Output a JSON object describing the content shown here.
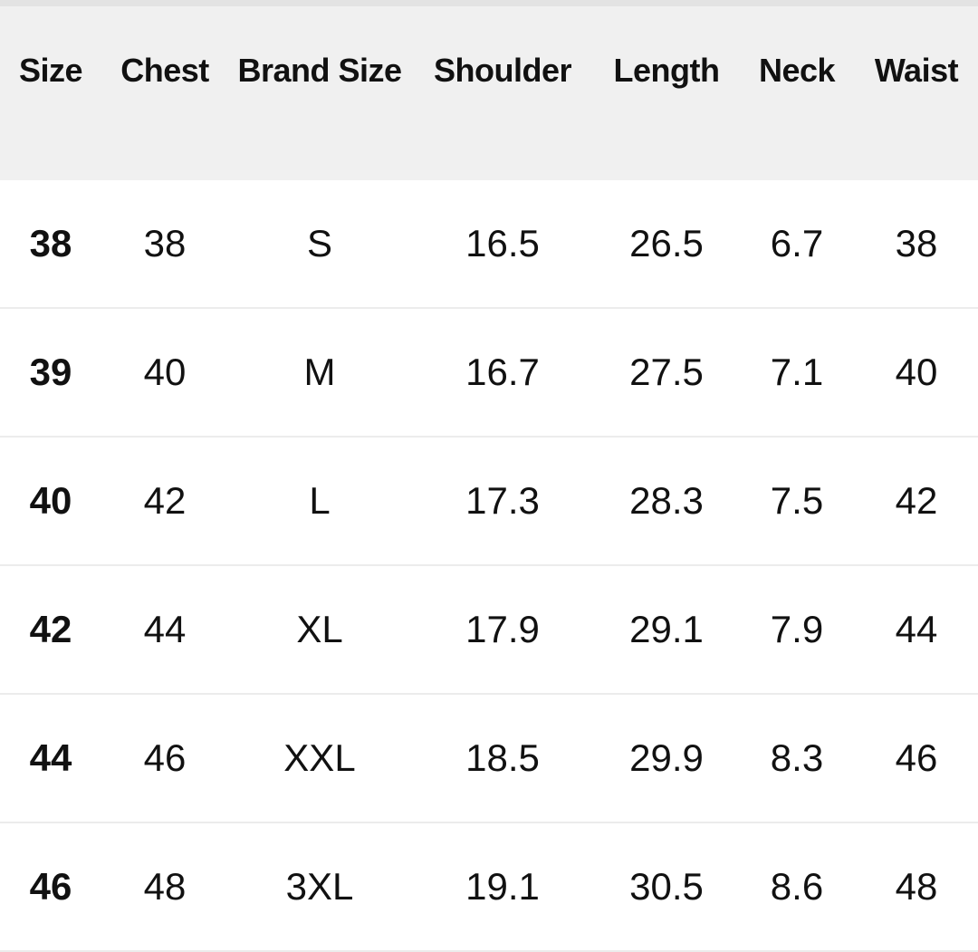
{
  "table": {
    "headers": [
      "Size",
      "Chest",
      "Brand Size",
      "Shoulder",
      "Length",
      "Neck",
      "Waist"
    ],
    "rows": [
      [
        "38",
        "38",
        "S",
        "16.5",
        "26.5",
        "6.7",
        "38"
      ],
      [
        "39",
        "40",
        "M",
        "16.7",
        "27.5",
        "7.1",
        "40"
      ],
      [
        "40",
        "42",
        "L",
        "17.3",
        "28.3",
        "7.5",
        "42"
      ],
      [
        "42",
        "44",
        "XL",
        "17.9",
        "29.1",
        "7.9",
        "44"
      ],
      [
        "44",
        "46",
        "XXL",
        "18.5",
        "29.9",
        "8.3",
        "46"
      ],
      [
        "46",
        "48",
        "3XL",
        "19.1",
        "30.5",
        "8.6",
        "48"
      ]
    ]
  },
  "colors": {
    "header_bg": "#f0f0f0",
    "divider": "#ececec",
    "text": "#111111"
  }
}
